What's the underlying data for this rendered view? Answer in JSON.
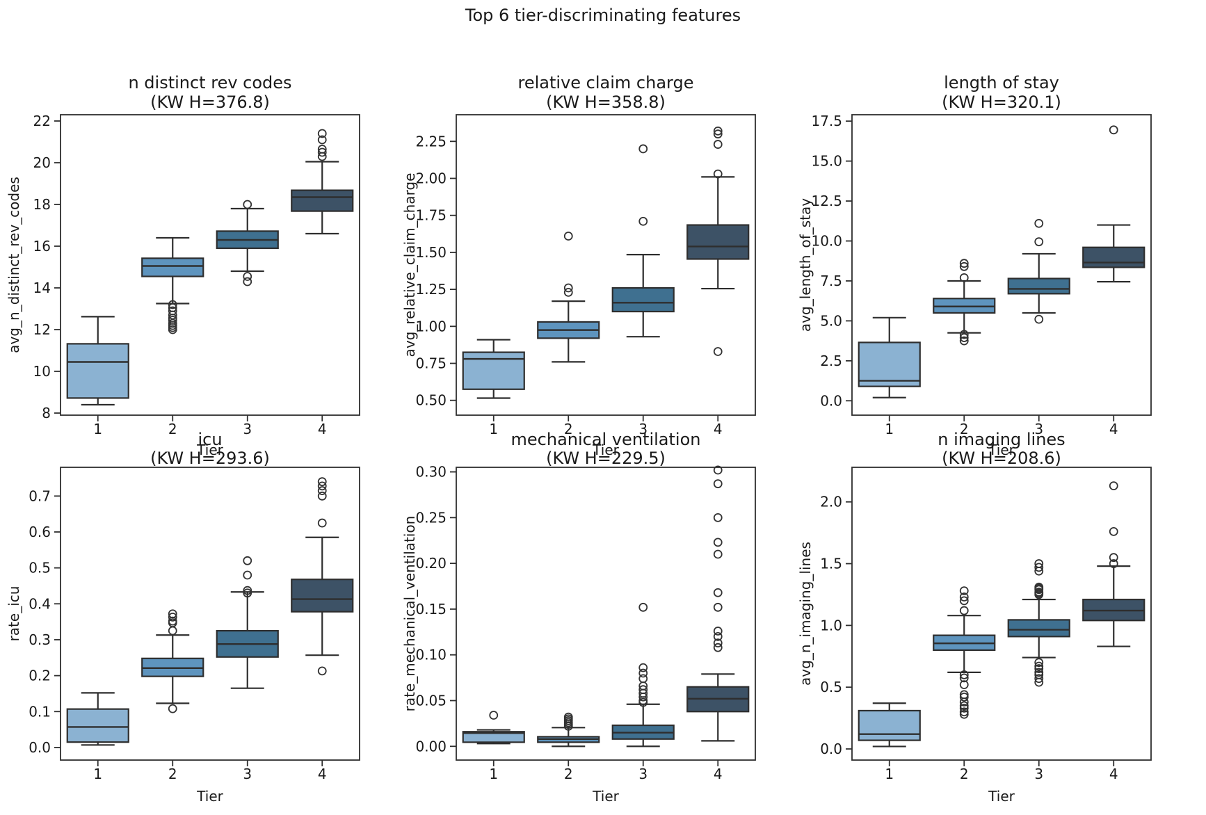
{
  "figure": {
    "suptitle": "Top 6 tier-discriminating features",
    "background": "#ffffff"
  },
  "palette": {
    "tier_fills": [
      "#8bb2d2",
      "#5e94be",
      "#3f7090",
      "#3d5266"
    ],
    "edge": "#2e2e2e",
    "flier_edge": "#333333",
    "text": "#1a1a1a"
  },
  "axis": {
    "xlabel": "Tier",
    "xtick_labels": [
      "1",
      "2",
      "3",
      "4"
    ]
  },
  "chart_data": [
    {
      "type": "box",
      "title": "n distinct rev codes",
      "subtitle": "(KW H=376.8)",
      "ylabel": "avg_n_distinct_rev_codes",
      "ylim": [
        7.9,
        22.3
      ],
      "grid": false,
      "ytick_values": [
        8,
        10,
        12,
        14,
        16,
        18,
        20,
        22
      ],
      "ytick_labels": [
        "8",
        "10",
        "12",
        "14",
        "16",
        "18",
        "20",
        "22"
      ],
      "boxes": [
        {
          "tier": "1",
          "whislo": 8.4,
          "q1": 8.72,
          "med": 10.45,
          "q3": 11.32,
          "whishi": 12.62,
          "fliers": []
        },
        {
          "tier": "2",
          "whislo": 13.25,
          "q1": 14.55,
          "med": 15.05,
          "q3": 15.42,
          "whishi": 16.4,
          "fliers": [
            13.2,
            13.05,
            12.9,
            12.7,
            12.55,
            12.45,
            12.3,
            12.2,
            12.1,
            12.0
          ]
        },
        {
          "tier": "3",
          "whislo": 14.8,
          "q1": 15.9,
          "med": 16.3,
          "q3": 16.72,
          "whishi": 17.8,
          "fliers": [
            18.0,
            14.55,
            14.3
          ]
        },
        {
          "tier": "4",
          "whislo": 16.6,
          "q1": 17.68,
          "med": 18.35,
          "q3": 18.68,
          "whishi": 20.05,
          "fliers": [
            21.4,
            21.1,
            20.65,
            20.5,
            20.3
          ]
        }
      ]
    },
    {
      "type": "box",
      "title": "relative claim charge",
      "subtitle": "(KW H=358.8)",
      "ylabel": "avg_relative_claim_charge",
      "ylim": [
        0.4,
        2.43
      ],
      "grid": false,
      "ytick_values": [
        0.5,
        0.75,
        1.0,
        1.25,
        1.5,
        1.75,
        2.0,
        2.25
      ],
      "ytick_labels": [
        "0.50",
        "0.75",
        "1.00",
        "1.25",
        "1.50",
        "1.75",
        "2.00",
        "2.25"
      ],
      "boxes": [
        {
          "tier": "1",
          "whislo": 0.515,
          "q1": 0.575,
          "med": 0.78,
          "q3": 0.825,
          "whishi": 0.91,
          "fliers": []
        },
        {
          "tier": "2",
          "whislo": 0.76,
          "q1": 0.92,
          "med": 0.975,
          "q3": 1.03,
          "whishi": 1.17,
          "fliers": [
            1.61,
            1.26,
            1.23
          ]
        },
        {
          "tier": "3",
          "whislo": 0.93,
          "q1": 1.1,
          "med": 1.16,
          "q3": 1.26,
          "whishi": 1.485,
          "fliers": [
            2.2,
            1.71
          ]
        },
        {
          "tier": "4",
          "whislo": 1.255,
          "q1": 1.455,
          "med": 1.54,
          "q3": 1.685,
          "whishi": 2.01,
          "fliers": [
            2.32,
            2.3,
            2.23,
            2.03,
            0.83
          ]
        }
      ]
    },
    {
      "type": "box",
      "title": "length of stay",
      "subtitle": "(KW H=320.1)",
      "ylabel": "avg_length_of_stay",
      "ylim": [
        -0.9,
        17.9
      ],
      "grid": false,
      "ytick_values": [
        0.0,
        2.5,
        5.0,
        7.5,
        10.0,
        12.5,
        15.0,
        17.5
      ],
      "ytick_labels": [
        "0.0",
        "2.5",
        "5.0",
        "7.5",
        "10.0",
        "12.5",
        "15.0",
        "17.5"
      ],
      "boxes": [
        {
          "tier": "1",
          "whislo": 0.2,
          "q1": 0.9,
          "med": 1.25,
          "q3": 3.65,
          "whishi": 5.2,
          "fliers": []
        },
        {
          "tier": "2",
          "whislo": 4.25,
          "q1": 5.5,
          "med": 5.9,
          "q3": 6.4,
          "whishi": 7.5,
          "fliers": [
            8.6,
            8.4,
            7.7,
            4.15,
            3.95,
            3.75
          ]
        },
        {
          "tier": "3",
          "whislo": 5.5,
          "q1": 6.7,
          "med": 7.0,
          "q3": 7.65,
          "whishi": 9.2,
          "fliers": [
            11.1,
            9.95,
            5.1
          ]
        },
        {
          "tier": "4",
          "whislo": 7.45,
          "q1": 8.35,
          "med": 8.65,
          "q3": 9.6,
          "whishi": 11.0,
          "fliers": [
            16.95
          ]
        }
      ]
    },
    {
      "type": "box",
      "title": "icu",
      "subtitle": "(KW H=293.6)",
      "ylabel": "rate_icu",
      "ylim": [
        -0.035,
        0.78
      ],
      "grid": false,
      "ytick_values": [
        0.0,
        0.1,
        0.2,
        0.3,
        0.4,
        0.5,
        0.6,
        0.7
      ],
      "ytick_labels": [
        "0.0",
        "0.1",
        "0.2",
        "0.3",
        "0.4",
        "0.5",
        "0.6",
        "0.7"
      ],
      "boxes": [
        {
          "tier": "1",
          "whislo": 0.007,
          "q1": 0.015,
          "med": 0.057,
          "q3": 0.107,
          "whishi": 0.152,
          "fliers": []
        },
        {
          "tier": "2",
          "whislo": 0.123,
          "q1": 0.198,
          "med": 0.221,
          "q3": 0.248,
          "whishi": 0.313,
          "fliers": [
            0.372,
            0.363,
            0.352,
            0.347,
            0.325,
            0.108
          ]
        },
        {
          "tier": "3",
          "whislo": 0.165,
          "q1": 0.252,
          "med": 0.288,
          "q3": 0.325,
          "whishi": 0.433,
          "fliers": [
            0.52,
            0.48,
            0.437,
            0.43
          ]
        },
        {
          "tier": "4",
          "whislo": 0.257,
          "q1": 0.378,
          "med": 0.413,
          "q3": 0.468,
          "whishi": 0.585,
          "fliers": [
            0.74,
            0.728,
            0.715,
            0.7,
            0.625,
            0.213
          ]
        }
      ]
    },
    {
      "type": "box",
      "title": "mechanical ventilation",
      "subtitle": "(KW H=229.5)",
      "ylabel": "rate_mechanical_ventilation",
      "ylim": [
        -0.015,
        0.305
      ],
      "grid": false,
      "ytick_values": [
        0.0,
        0.05,
        0.1,
        0.15,
        0.2,
        0.25,
        0.3
      ],
      "ytick_labels": [
        "0.00",
        "0.05",
        "0.10",
        "0.15",
        "0.20",
        "0.25",
        "0.30"
      ],
      "boxes": [
        {
          "tier": "1",
          "whislo": 0.003,
          "q1": 0.0045,
          "med": 0.0145,
          "q3": 0.016,
          "whishi": 0.018,
          "fliers": [
            0.034
          ]
        },
        {
          "tier": "2",
          "whislo": 0.0,
          "q1": 0.0045,
          "med": 0.008,
          "q3": 0.0105,
          "whishi": 0.0205,
          "fliers": [
            0.032,
            0.03,
            0.028,
            0.026,
            0.024,
            0.022
          ]
        },
        {
          "tier": "3",
          "whislo": 0.0,
          "q1": 0.008,
          "med": 0.015,
          "q3": 0.023,
          "whishi": 0.046,
          "fliers": [
            0.152,
            0.086,
            0.08,
            0.074,
            0.066,
            0.062,
            0.058,
            0.054,
            0.05,
            0.048
          ]
        },
        {
          "tier": "4",
          "whislo": 0.006,
          "q1": 0.038,
          "med": 0.052,
          "q3": 0.065,
          "whishi": 0.079,
          "fliers": [
            0.302,
            0.287,
            0.25,
            0.223,
            0.21,
            0.168,
            0.152,
            0.126,
            0.12,
            0.113,
            0.108
          ]
        }
      ]
    },
    {
      "type": "box",
      "title": "n imaging lines",
      "subtitle": "(KW H=208.6)",
      "ylabel": "avg_n_imaging_lines",
      "ylim": [
        -0.09,
        2.28
      ],
      "grid": false,
      "ytick_values": [
        0.0,
        0.5,
        1.0,
        1.5,
        2.0
      ],
      "ytick_labels": [
        "0.0",
        "0.5",
        "1.0",
        "1.5",
        "2.0"
      ],
      "boxes": [
        {
          "tier": "1",
          "whislo": 0.02,
          "q1": 0.07,
          "med": 0.12,
          "q3": 0.31,
          "whishi": 0.37,
          "fliers": []
        },
        {
          "tier": "2",
          "whislo": 0.62,
          "q1": 0.8,
          "med": 0.855,
          "q3": 0.92,
          "whishi": 1.08,
          "fliers": [
            1.28,
            1.23,
            1.2,
            1.12,
            0.6,
            0.575,
            0.52,
            0.44,
            0.42,
            0.38,
            0.35,
            0.33,
            0.3,
            0.28
          ]
        },
        {
          "tier": "3",
          "whislo": 0.74,
          "q1": 0.91,
          "med": 0.965,
          "q3": 1.045,
          "whishi": 1.21,
          "fliers": [
            1.5,
            1.47,
            1.44,
            1.31,
            1.3,
            1.29,
            1.27,
            1.26,
            1.25,
            0.7,
            0.67,
            0.65,
            0.62,
            0.6,
            0.57,
            0.54
          ]
        },
        {
          "tier": "4",
          "whislo": 0.83,
          "q1": 1.04,
          "med": 1.12,
          "q3": 1.21,
          "whishi": 1.48,
          "fliers": [
            2.13,
            1.76,
            1.55,
            1.5
          ]
        }
      ]
    }
  ]
}
